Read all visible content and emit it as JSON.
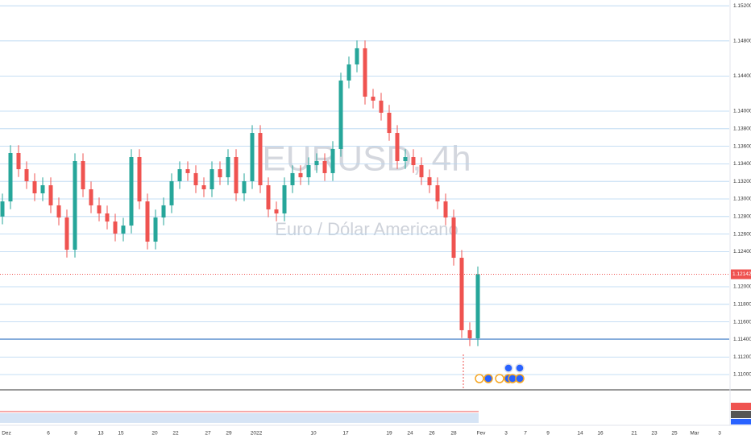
{
  "chart_data": {
    "type": "candlestick",
    "title": "EURUSD, 4h",
    "subtitle": "Euro / Dólar Americano",
    "up_color": "#26a69a",
    "down_color": "#ef5350",
    "grid_color": "#b3d4f0",
    "grid": true,
    "ylim": [
      1.10835,
      1.15266
    ],
    "yticks": [
      {
        "value": 1.11,
        "label": "1.11000"
      },
      {
        "value": 1.112,
        "label": "1.11200"
      },
      {
        "value": 1.114,
        "label": "1.11400"
      },
      {
        "value": 1.116,
        "label": "1.11600"
      },
      {
        "value": 1.118,
        "label": "1.11800"
      },
      {
        "value": 1.12,
        "label": "1.12000"
      },
      {
        "value": 1.124,
        "label": "1.12400"
      },
      {
        "value": 1.126,
        "label": "1.12600"
      },
      {
        "value": 1.128,
        "label": "1.12800"
      },
      {
        "value": 1.13,
        "label": "1.13000"
      },
      {
        "value": 1.132,
        "label": "1.13200"
      },
      {
        "value": 1.134,
        "label": "1.13400"
      },
      {
        "value": 1.136,
        "label": "1.13600"
      },
      {
        "value": 1.138,
        "label": "1.13800"
      },
      {
        "value": 1.14,
        "label": "1.14000"
      },
      {
        "value": 1.144,
        "label": "1.14400"
      },
      {
        "value": 1.148,
        "label": "1.14800"
      },
      {
        "value": 1.152,
        "label": "1.15200"
      }
    ],
    "x_labels": [
      "Dez",
      "6",
      "8",
      "13",
      "15",
      "20",
      "22",
      "27",
      "29",
      "2022",
      "10",
      "17",
      "19",
      "24",
      "26",
      "28",
      "Fev",
      "3",
      "7",
      "9",
      "14",
      "16",
      "21",
      "23",
      "25",
      "Mar",
      "3"
    ],
    "current_price": 1.12142,
    "open": [
      1.128,
      1.12972,
      1.13523,
      1.13339,
      1.13202,
      1.13064,
      1.13156,
      1.12927,
      1.12789,
      1.12422,
      1.13431,
      1.1311,
      1.12927,
      1.12835,
      1.12743,
      1.12606,
      1.12697,
      1.13477,
      1.12972,
      1.12514,
      1.12789,
      1.12927,
      1.13202,
      1.13339,
      1.13294,
      1.13156,
      1.1311,
      1.13339,
      1.13247,
      1.13477,
      1.13064,
      1.13202,
      1.13752,
      1.13156,
      1.12881,
      1.12835,
      1.13156,
      1.13294,
      1.13247,
      1.13385,
      1.13431,
      1.13294,
      1.13569,
      1.14349,
      1.14532,
      1.14716,
      1.14165,
      1.1412,
      1.13982,
      1.13752,
      1.13431,
      1.13477,
      1.13385,
      1.13247,
      1.13156,
      1.12972,
      1.12789,
      1.1233,
      1.11505,
      1.11413
    ],
    "high": [
      1.13061,
      1.13612,
      1.13612,
      1.13428,
      1.13291,
      1.13245,
      1.13245,
      1.13016,
      1.12878,
      1.1352,
      1.1352,
      1.13199,
      1.13016,
      1.12924,
      1.12832,
      1.12786,
      1.13566,
      1.13566,
      1.13061,
      1.12878,
      1.13016,
      1.13291,
      1.13428,
      1.13428,
      1.13383,
      1.13245,
      1.13428,
      1.13428,
      1.13566,
      1.13566,
      1.13291,
      1.13841,
      1.13841,
      1.13245,
      1.1297,
      1.13245,
      1.13383,
      1.13383,
      1.13474,
      1.1352,
      1.1352,
      1.13658,
      1.14438,
      1.14621,
      1.14805,
      1.14805,
      1.14254,
      1.14209,
      1.14071,
      1.13841,
      1.13566,
      1.13566,
      1.13474,
      1.13336,
      1.13245,
      1.13061,
      1.12878,
      1.12419,
      1.11594,
      1.12231
    ],
    "low": [
      1.12711,
      1.12883,
      1.1325,
      1.13113,
      1.12975,
      1.12975,
      1.12838,
      1.127,
      1.12333,
      1.12333,
      1.13021,
      1.12838,
      1.12746,
      1.12654,
      1.12517,
      1.12517,
      1.12608,
      1.12883,
      1.12425,
      1.12425,
      1.127,
      1.12838,
      1.13113,
      1.13205,
      1.13067,
      1.13021,
      1.13021,
      1.13158,
      1.13158,
      1.12975,
      1.12975,
      1.13113,
      1.13067,
      1.12792,
      1.12746,
      1.12746,
      1.13067,
      1.13158,
      1.13158,
      1.13296,
      1.13205,
      1.13205,
      1.1348,
      1.1426,
      1.14443,
      1.14076,
      1.14031,
      1.13893,
      1.13663,
      1.13342,
      1.13342,
      1.13296,
      1.13158,
      1.13067,
      1.12883,
      1.127,
      1.12241,
      1.11416,
      1.11324,
      1.11324
    ],
    "close": [
      1.12972,
      1.13523,
      1.13339,
      1.13202,
      1.13064,
      1.13156,
      1.12927,
      1.12789,
      1.12422,
      1.13431,
      1.1311,
      1.12927,
      1.12835,
      1.12743,
      1.12606,
      1.12697,
      1.13477,
      1.12972,
      1.12514,
      1.12789,
      1.12927,
      1.13202,
      1.13339,
      1.13294,
      1.13156,
      1.1311,
      1.13339,
      1.13247,
      1.13477,
      1.13064,
      1.13202,
      1.13752,
      1.13156,
      1.12881,
      1.12835,
      1.13156,
      1.13294,
      1.13247,
      1.13385,
      1.13431,
      1.13294,
      1.13569,
      1.14349,
      1.14532,
      1.14716,
      1.14165,
      1.1412,
      1.13982,
      1.13752,
      1.13431,
      1.13477,
      1.13385,
      1.13247,
      1.13156,
      1.12972,
      1.12789,
      1.1233,
      1.11505,
      1.11413,
      1.12142
    ]
  }
}
